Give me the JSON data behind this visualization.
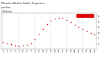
{
  "title": "Milwaukee Weather Outdoor Temperature per Hour (24 Hours)",
  "hours": [
    0,
    1,
    2,
    3,
    4,
    5,
    6,
    7,
    8,
    9,
    10,
    11,
    12,
    13,
    14,
    15,
    16,
    17,
    18,
    19,
    20,
    21,
    22,
    23
  ],
  "temperatures": [
    -2,
    -4,
    -6,
    -8,
    -9,
    -8,
    -7,
    -5,
    3,
    12,
    22,
    30,
    36,
    40,
    42,
    41,
    38,
    34,
    29,
    25,
    21,
    18,
    14,
    11
  ],
  "dot_color": "#dd0000",
  "bg_color": "#ffffff",
  "grid_color": "#999999",
  "ylim": [
    -15,
    50
  ],
  "ytick_vals": [
    45,
    35,
    25,
    15,
    5,
    -5
  ],
  "ytick_labels": [
    "45",
    "35",
    "25",
    "15",
    "5",
    "-5"
  ],
  "legend_box_color": "#dd0000"
}
